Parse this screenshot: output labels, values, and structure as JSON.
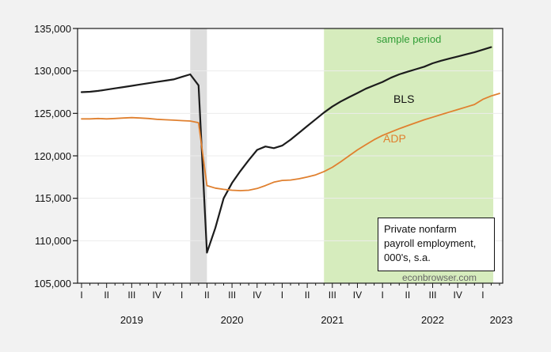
{
  "chart_data": {
    "type": "line",
    "frequency": "monthly",
    "x_start": "2019-01",
    "ylim": [
      105000,
      135000
    ],
    "y_ticks": [
      {
        "value": 135000,
        "label": "135,000"
      },
      {
        "value": 130000,
        "label": "130,000"
      },
      {
        "value": 125000,
        "label": "125,000"
      },
      {
        "value": 120000,
        "label": "120,000"
      },
      {
        "value": 115000,
        "label": "115,000"
      },
      {
        "value": 110000,
        "label": "110,000"
      },
      {
        "value": 105000,
        "label": "105,000"
      }
    ],
    "quarter_ticks": {
      "months": [
        0,
        3,
        6,
        9,
        12,
        15,
        18,
        21,
        24,
        27,
        30,
        33,
        36,
        39,
        42,
        45,
        48
      ],
      "labels": [
        "I",
        "II",
        "III",
        "IV",
        "I",
        "II",
        "III",
        "IV",
        "I",
        "II",
        "III",
        "IV",
        "I",
        "II",
        "III",
        "IV",
        "I"
      ]
    },
    "year_labels": [
      {
        "label": "2019",
        "month_center": 6
      },
      {
        "label": "2020",
        "month_center": 18
      },
      {
        "label": "2021",
        "month_center": 30
      },
      {
        "label": "2022",
        "month_center": 42
      },
      {
        "label": "2023",
        "month_center": 50.2
      }
    ],
    "minor_tick_months_last": 50,
    "series": [
      {
        "name": "BLS",
        "color": "#1c1c1c",
        "values": [
          127500,
          127550,
          127650,
          127800,
          127950,
          128100,
          128250,
          128400,
          128550,
          128700,
          128850,
          129000,
          129300,
          129600,
          128300,
          108600,
          111500,
          115000,
          116800,
          118200,
          119500,
          120700,
          121100,
          120900,
          121200,
          121900,
          122700,
          123500,
          124300,
          125100,
          125800,
          126400,
          126900,
          127400,
          127900,
          128300,
          128700,
          129200,
          129600,
          129900,
          130200,
          130500,
          130900,
          131200,
          131450,
          131700,
          131950,
          132200,
          132500,
          132800
        ]
      },
      {
        "name": "ADP",
        "color": "#e0802f",
        "values": [
          124350,
          124350,
          124400,
          124350,
          124400,
          124450,
          124500,
          124450,
          124400,
          124300,
          124250,
          124200,
          124150,
          124100,
          123900,
          116500,
          116200,
          116050,
          115950,
          115900,
          115950,
          116150,
          116500,
          116900,
          117100,
          117150,
          117300,
          117500,
          117750,
          118150,
          118650,
          119300,
          120000,
          120700,
          121300,
          121900,
          122400,
          122800,
          123200,
          123550,
          123900,
          124250,
          124550,
          124850,
          125150,
          125450,
          125750,
          126050,
          126650,
          127050,
          127350
        ]
      }
    ],
    "shaded_regions": [
      {
        "name": "recession-band",
        "from_month": 13,
        "to_month": 15,
        "color": "#dedede"
      },
      {
        "name": "sample-period-band",
        "from_month": 29,
        "to_month": 49.25,
        "color": "#d6ecbd"
      }
    ],
    "grid": "horizontal",
    "legend_position": "inline-labels"
  },
  "labels": {
    "sample_period": "sample period",
    "sample_period_color": "#2f9c35",
    "bls": "BLS",
    "adp": "ADP",
    "adp_color": "#e0802f",
    "note_line1": "Private nonfarm",
    "note_line2": "payroll employment,",
    "note_line3": "000's, s.a.",
    "watermark": "econbrowser.com",
    "watermark_color": "#666666"
  }
}
